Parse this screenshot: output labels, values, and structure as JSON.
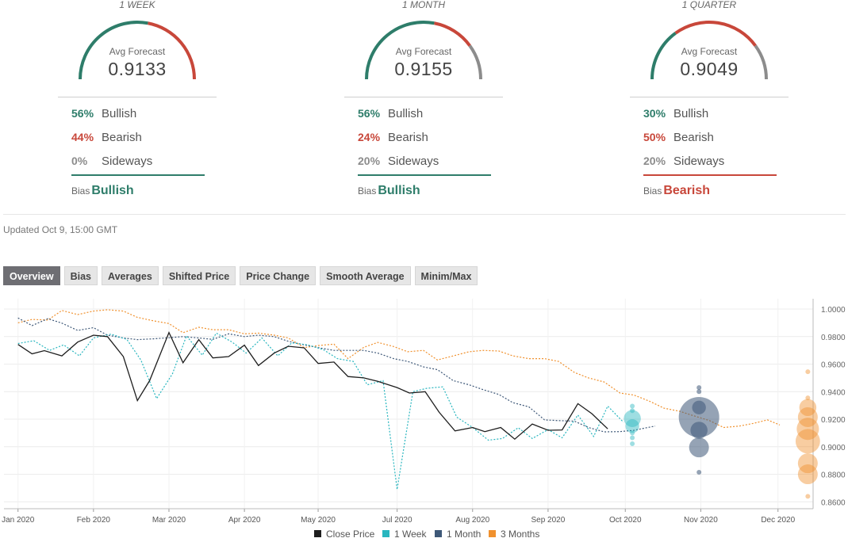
{
  "colors": {
    "bullish": "#2e7d6a",
    "bearish": "#c8473a",
    "neutral": "#8c8c8c",
    "close": "#1e1e1e",
    "week": "#29b6bf",
    "month": "#3e5878",
    "quarter": "#f0912e"
  },
  "panels": [
    {
      "period": "1 WEEK",
      "avg_label": "Avg Forecast",
      "avg": "0.9133",
      "bullish_pct": "56%",
      "bearish_pct": "44%",
      "sideways_pct": "0%",
      "bullish_label": "Bullish",
      "bearish_label": "Bearish",
      "sideways_label": "Sideways",
      "bias_label": "Bias",
      "bias": "Bullish",
      "bias_type": "bullish",
      "gauge": {
        "bullish": 0.56,
        "bearish": 0.44,
        "sideways": 0.0
      }
    },
    {
      "period": "1 MONTH",
      "avg_label": "Avg Forecast",
      "avg": "0.9155",
      "bullish_pct": "56%",
      "bearish_pct": "24%",
      "sideways_pct": "20%",
      "bullish_label": "Bullish",
      "bearish_label": "Bearish",
      "sideways_label": "Sideways",
      "bias_label": "Bias",
      "bias": "Bullish",
      "bias_type": "bullish",
      "gauge": {
        "bullish": 0.56,
        "bearish": 0.24,
        "sideways": 0.2
      }
    },
    {
      "period": "1 QUARTER",
      "avg_label": "Avg Forecast",
      "avg": "0.9049",
      "bullish_pct": "30%",
      "bearish_pct": "50%",
      "sideways_pct": "20%",
      "bullish_label": "Bullish",
      "bearish_label": "Bearish",
      "sideways_label": "Sideways",
      "bias_label": "Bias",
      "bias": "Bearish",
      "bias_type": "bearish",
      "gauge": {
        "bullish": 0.3,
        "bearish": 0.5,
        "sideways": 0.2
      }
    }
  ],
  "updated": "Updated Oct 9, 15:00 GMT",
  "tabs": [
    "Overview",
    "Bias",
    "Averages",
    "Shifted Price",
    "Price Change",
    "Smooth Average",
    "Minim/Max"
  ],
  "active_tab": 0,
  "chart_data": {
    "type": "line",
    "x_unit": "weeks from Jan 2020 tick",
    "x_ticks": [
      "Jan 2020",
      "Feb 2020",
      "Mar 2020",
      "Apr 2020",
      "May 2020",
      "Jul 2020",
      "Aug 2020",
      "Sep 2020",
      "Oct 2020",
      "Nov 2020",
      "Dec 2020"
    ],
    "x_tick_pos": [
      0,
      4.3,
      8.6,
      12.9,
      17.1,
      21.6,
      25.9,
      30.2,
      34.6,
      38.9,
      43.3
    ],
    "y_ticks": [
      "1.0000",
      "0.9800",
      "0.9600",
      "0.9400",
      "0.9200",
      "0.9000",
      "0.8800",
      "0.8600"
    ],
    "ylim": [
      0.855,
      1.0075
    ],
    "xlim": [
      -0.8,
      45.3
    ],
    "grid": true,
    "legend_position": "bottom",
    "series": [
      {
        "name": "Close Price",
        "key": "close",
        "style": "solid",
        "x": [
          0,
          0.8,
          1.5,
          2.5,
          3.4,
          4.3,
          5.1,
          6.0,
          6.8,
          7.5,
          8.6,
          9.4,
          10.3,
          11.1,
          12.0,
          12.9,
          13.7,
          14.6,
          15.4,
          16.3,
          17.1,
          18.0,
          18.8,
          19.7,
          20.5,
          21.6,
          22.3,
          23.2,
          24.0,
          24.9,
          25.9,
          26.6,
          27.5,
          28.3,
          29.3,
          30.2,
          31.0,
          31.9,
          32.7,
          33.6
        ],
        "y": [
          0.9743,
          0.9675,
          0.9698,
          0.966,
          0.976,
          0.981,
          0.98,
          0.9655,
          0.9335,
          0.948,
          0.983,
          0.961,
          0.9778,
          0.9645,
          0.9655,
          0.9738,
          0.959,
          0.968,
          0.973,
          0.9718,
          0.9605,
          0.9615,
          0.951,
          0.95,
          0.9475,
          0.943,
          0.939,
          0.94,
          0.925,
          0.9115,
          0.914,
          0.911,
          0.914,
          0.9055,
          0.9165,
          0.912,
          0.9122,
          0.9313,
          0.924,
          0.913
        ]
      },
      {
        "name": "1 Week",
        "key": "week",
        "style": "dotted",
        "x": [
          0,
          0.9,
          1.8,
          2.6,
          3.5,
          4.3,
          5.3,
          6.2,
          7.0,
          7.9,
          8.8,
          9.6,
          10.5,
          11.3,
          12.2,
          13.0,
          13.9,
          14.8,
          15.6,
          16.5,
          17.4,
          18.2,
          19.1,
          19.9,
          20.8,
          21.6,
          22.5,
          23.3,
          24.2,
          25.0,
          25.9,
          26.8,
          27.6,
          28.5,
          29.3,
          30.2,
          31.0,
          31.9,
          32.8,
          33.6,
          34.5
        ],
        "y": [
          0.975,
          0.977,
          0.97,
          0.974,
          0.966,
          0.979,
          0.9818,
          0.978,
          0.963,
          0.935,
          0.953,
          0.9805,
          0.9665,
          0.9825,
          0.976,
          0.968,
          0.979,
          0.966,
          0.9755,
          0.974,
          0.9705,
          0.964,
          0.962,
          0.945,
          0.948,
          0.869,
          0.94,
          0.9425,
          0.9435,
          0.9215,
          0.914,
          0.9048,
          0.906,
          0.9138,
          0.906,
          0.9125,
          0.9065,
          0.923,
          0.9075,
          0.9295,
          0.9178
        ]
      },
      {
        "name": "1 Month",
        "key": "month",
        "style": "dotted",
        "x": [
          0,
          0.8,
          1.7,
          2.5,
          3.4,
          4.3,
          5.1,
          6.0,
          6.8,
          7.7,
          8.6,
          9.4,
          10.3,
          11.1,
          12.0,
          12.9,
          13.7,
          14.6,
          15.4,
          16.3,
          17.1,
          18.0,
          18.8,
          19.7,
          20.5,
          21.4,
          22.2,
          23.1,
          23.9,
          24.8,
          25.7,
          26.5,
          27.4,
          28.2,
          29.1,
          30.0,
          30.8,
          31.7,
          32.5,
          33.4,
          34.3,
          35.1,
          35.7,
          36.3
        ],
        "y": [
          0.9935,
          0.988,
          0.993,
          0.9898,
          0.9845,
          0.9865,
          0.981,
          0.979,
          0.9778,
          0.9784,
          0.9792,
          0.98,
          0.979,
          0.978,
          0.982,
          0.98,
          0.981,
          0.98,
          0.9766,
          0.974,
          0.972,
          0.97,
          0.97,
          0.97,
          0.968,
          0.964,
          0.962,
          0.958,
          0.956,
          0.948,
          0.945,
          0.9415,
          0.938,
          0.932,
          0.929,
          0.9195,
          0.919,
          0.9186,
          0.914,
          0.9108,
          0.911,
          0.912,
          0.9135,
          0.915
        ]
      },
      {
        "name": "3 Months",
        "key": "quarter",
        "style": "dotted",
        "x": [
          0,
          0.8,
          1.7,
          2.5,
          3.4,
          4.3,
          5.1,
          6.0,
          6.8,
          7.7,
          8.6,
          9.4,
          10.3,
          11.1,
          12.0,
          12.9,
          13.7,
          14.6,
          15.4,
          16.3,
          17.1,
          18.0,
          18.8,
          19.7,
          20.5,
          21.4,
          22.2,
          23.1,
          23.9,
          24.8,
          25.7,
          26.5,
          27.4,
          28.2,
          29.1,
          30.0,
          30.8,
          31.7,
          32.5,
          33.4,
          34.3,
          35.1,
          36.0,
          36.8,
          37.7,
          38.5,
          39.4,
          40.2,
          41.1,
          41.9,
          42.7,
          43.4
        ],
        "y": [
          0.99,
          0.9925,
          0.992,
          0.999,
          0.996,
          0.9985,
          0.9995,
          0.9985,
          0.994,
          0.9915,
          0.9895,
          0.9828,
          0.9868,
          0.985,
          0.985,
          0.982,
          0.9825,
          0.981,
          0.979,
          0.972,
          0.9735,
          0.9745,
          0.964,
          0.9722,
          0.9758,
          0.9728,
          0.969,
          0.97,
          0.963,
          0.966,
          0.969,
          0.97,
          0.9695,
          0.966,
          0.964,
          0.964,
          0.962,
          0.954,
          0.95,
          0.947,
          0.939,
          0.9375,
          0.933,
          0.928,
          0.9258,
          0.9225,
          0.919,
          0.914,
          0.915,
          0.917,
          0.9195,
          0.9158
        ]
      }
    ],
    "forecast_bubbles": [
      {
        "key": "week",
        "x": 35.0,
        "points": [
          {
            "y": 0.9295,
            "size": 1
          },
          {
            "y": 0.9262,
            "size": 1
          },
          {
            "y": 0.9205,
            "size": 3
          },
          {
            "y": 0.915,
            "size": 2
          },
          {
            "y": 0.91,
            "size": 1
          },
          {
            "y": 0.9065,
            "size": 1
          },
          {
            "y": 0.9022,
            "size": 1
          }
        ]
      },
      {
        "key": "month",
        "x": 38.8,
        "points": [
          {
            "y": 0.943,
            "size": 1
          },
          {
            "y": 0.94,
            "size": 1
          },
          {
            "y": 0.9285,
            "size": 2
          },
          {
            "y": 0.9215,
            "size": 16
          },
          {
            "y": 0.912,
            "size": 3
          },
          {
            "y": 0.8995,
            "size": 4
          },
          {
            "y": 0.8815,
            "size": 1
          }
        ]
      },
      {
        "key": "quarter",
        "x": 45.0,
        "points": [
          {
            "y": 0.9545,
            "size": 1
          },
          {
            "y": 0.9355,
            "size": 1
          },
          {
            "y": 0.9285,
            "size": 3
          },
          {
            "y": 0.9215,
            "size": 4
          },
          {
            "y": 0.913,
            "size": 5
          },
          {
            "y": 0.904,
            "size": 6
          },
          {
            "y": 0.888,
            "size": 4
          },
          {
            "y": 0.88,
            "size": 4
          },
          {
            "y": 0.864,
            "size": 1
          }
        ]
      }
    ]
  }
}
